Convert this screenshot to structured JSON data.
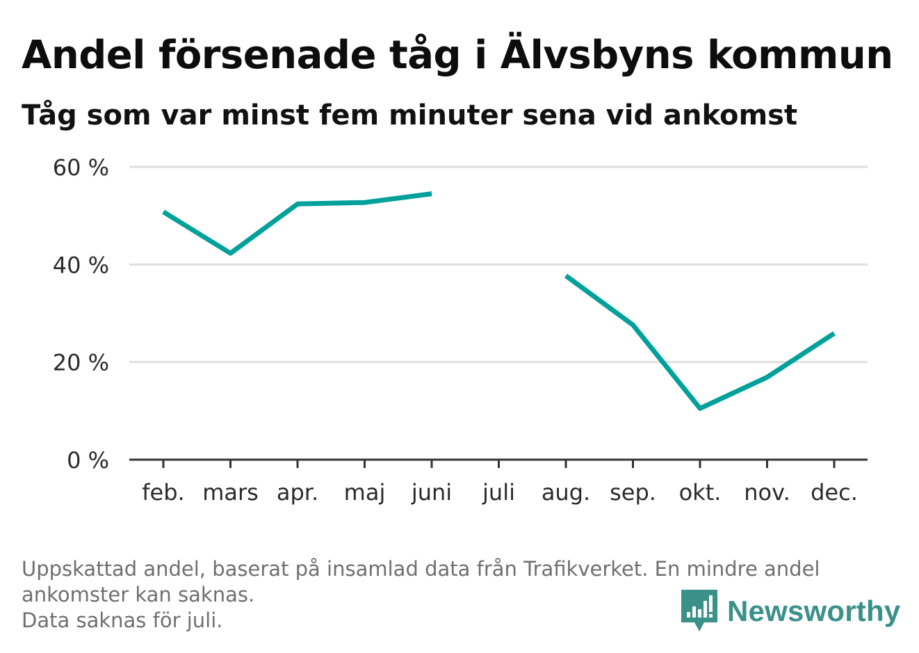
{
  "chart_data": {
    "type": "line",
    "title": "Andel försenade tåg i Älvsbyns kommun",
    "subtitle": "Tåg som var minst fem minuter sena vid ankomst",
    "categories": [
      "feb.",
      "mars",
      "apr.",
      "maj",
      "juni",
      "juli",
      "aug.",
      "sep.",
      "okt.",
      "nov.",
      "dec."
    ],
    "series": [
      {
        "values": [
          50.8,
          42.3,
          52.4,
          52.7,
          54.5,
          null,
          37.7,
          27.6,
          10.5,
          16.9,
          25.9
        ],
        "color": "#00a19a"
      }
    ],
    "y_ticks": [
      {
        "value": 0,
        "label": "0 %"
      },
      {
        "value": 20,
        "label": "20 %"
      },
      {
        "value": 40,
        "label": "40 %"
      },
      {
        "value": 60,
        "label": "60 %"
      }
    ],
    "ylim": [
      0,
      60
    ],
    "xlabel": "",
    "ylabel": "",
    "grid": true,
    "legend": "none"
  },
  "footnote": {
    "line1": "Uppskattad andel, baserat på insamlad data från Trafikverket. En mindre andel",
    "line2": "ankomster kan saknas.",
    "line3": "Data saknas för juli."
  },
  "brand": {
    "name": "Newsworthy",
    "icon": "newsworthy-logo-icon",
    "color": "#3a9189"
  },
  "colors": {
    "line": "#00a19a",
    "grid": "#dedede",
    "axis": "#333333"
  }
}
